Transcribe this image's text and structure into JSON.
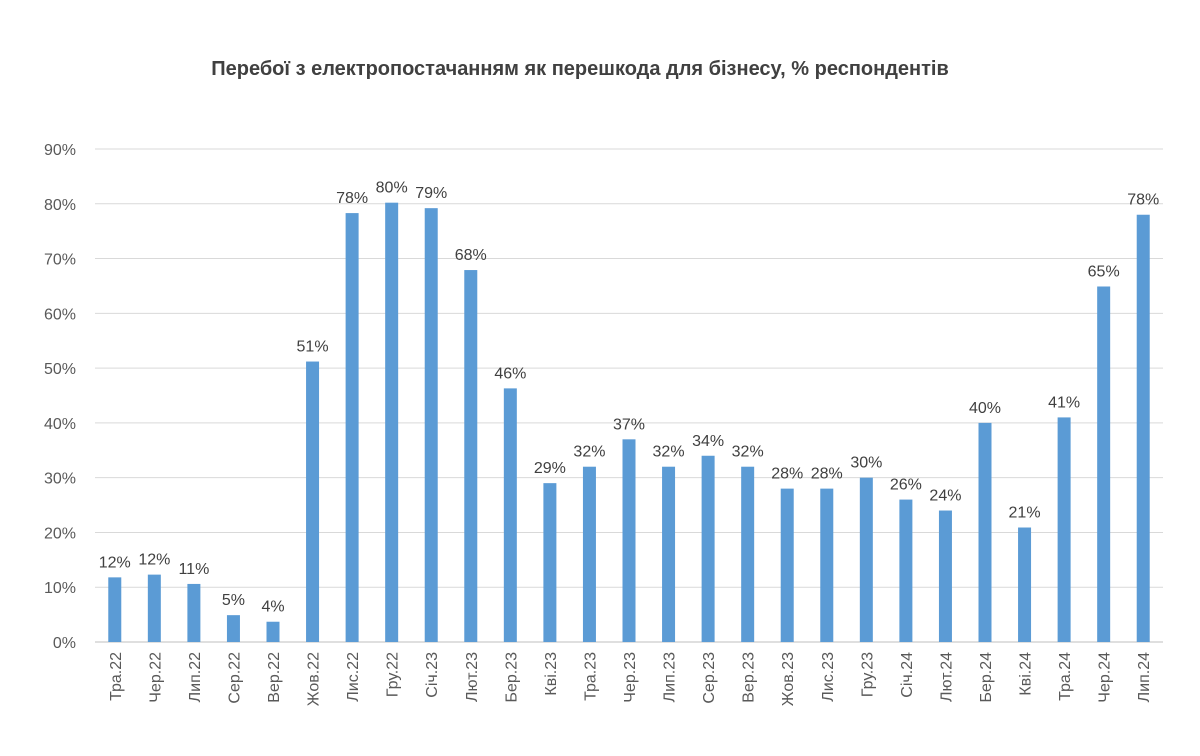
{
  "chart_data": {
    "type": "bar",
    "title": "Перебої з електропостачанням як перешкода для бізнесу, % респондентів",
    "xlabel": "",
    "ylabel": "",
    "ylim": [
      0,
      90
    ],
    "yticks": [
      0,
      10,
      20,
      30,
      40,
      50,
      60,
      70,
      80,
      90
    ],
    "ytick_suffix": "%",
    "grid": true,
    "legend": "none",
    "bar_color": "#5B9BD5",
    "categories": [
      "Тра.22",
      "Чер.22",
      "Лип.22",
      "Сер.22",
      "Вер.22",
      "Жов.22",
      "Лис.22",
      "Гру.22",
      "Січ.23",
      "Лют.23",
      "Бер.23",
      "Кві.23",
      "Тра.23",
      "Чер.23",
      "Лип.23",
      "Сер.23",
      "Вер.23",
      "Жов.23",
      "Лис.23",
      "Гру.23",
      "Січ.24",
      "Лют.24",
      "Бер.24",
      "Кві.24",
      "Тра.24",
      "Чер.24",
      "Лип.24"
    ],
    "values": [
      11.8,
      12.3,
      10.6,
      4.9,
      3.7,
      51.2,
      78.3,
      80.2,
      79.2,
      67.9,
      46.3,
      29.0,
      32.0,
      37.0,
      32.0,
      34.0,
      32.0,
      28.0,
      28.0,
      30.0,
      26.0,
      24.0,
      40.0,
      20.9,
      41.0,
      64.9,
      78.0
    ],
    "data_labels": [
      "12%",
      "12%",
      "11%",
      "5%",
      "4%",
      "51%",
      "78%",
      "80%",
      "79%",
      "68%",
      "46%",
      "29%",
      "32%",
      "37%",
      "32%",
      "34%",
      "32%",
      "28%",
      "28%",
      "30%",
      "26%",
      "24%",
      "40%",
      "21%",
      "41%",
      "65%",
      "78%"
    ]
  }
}
